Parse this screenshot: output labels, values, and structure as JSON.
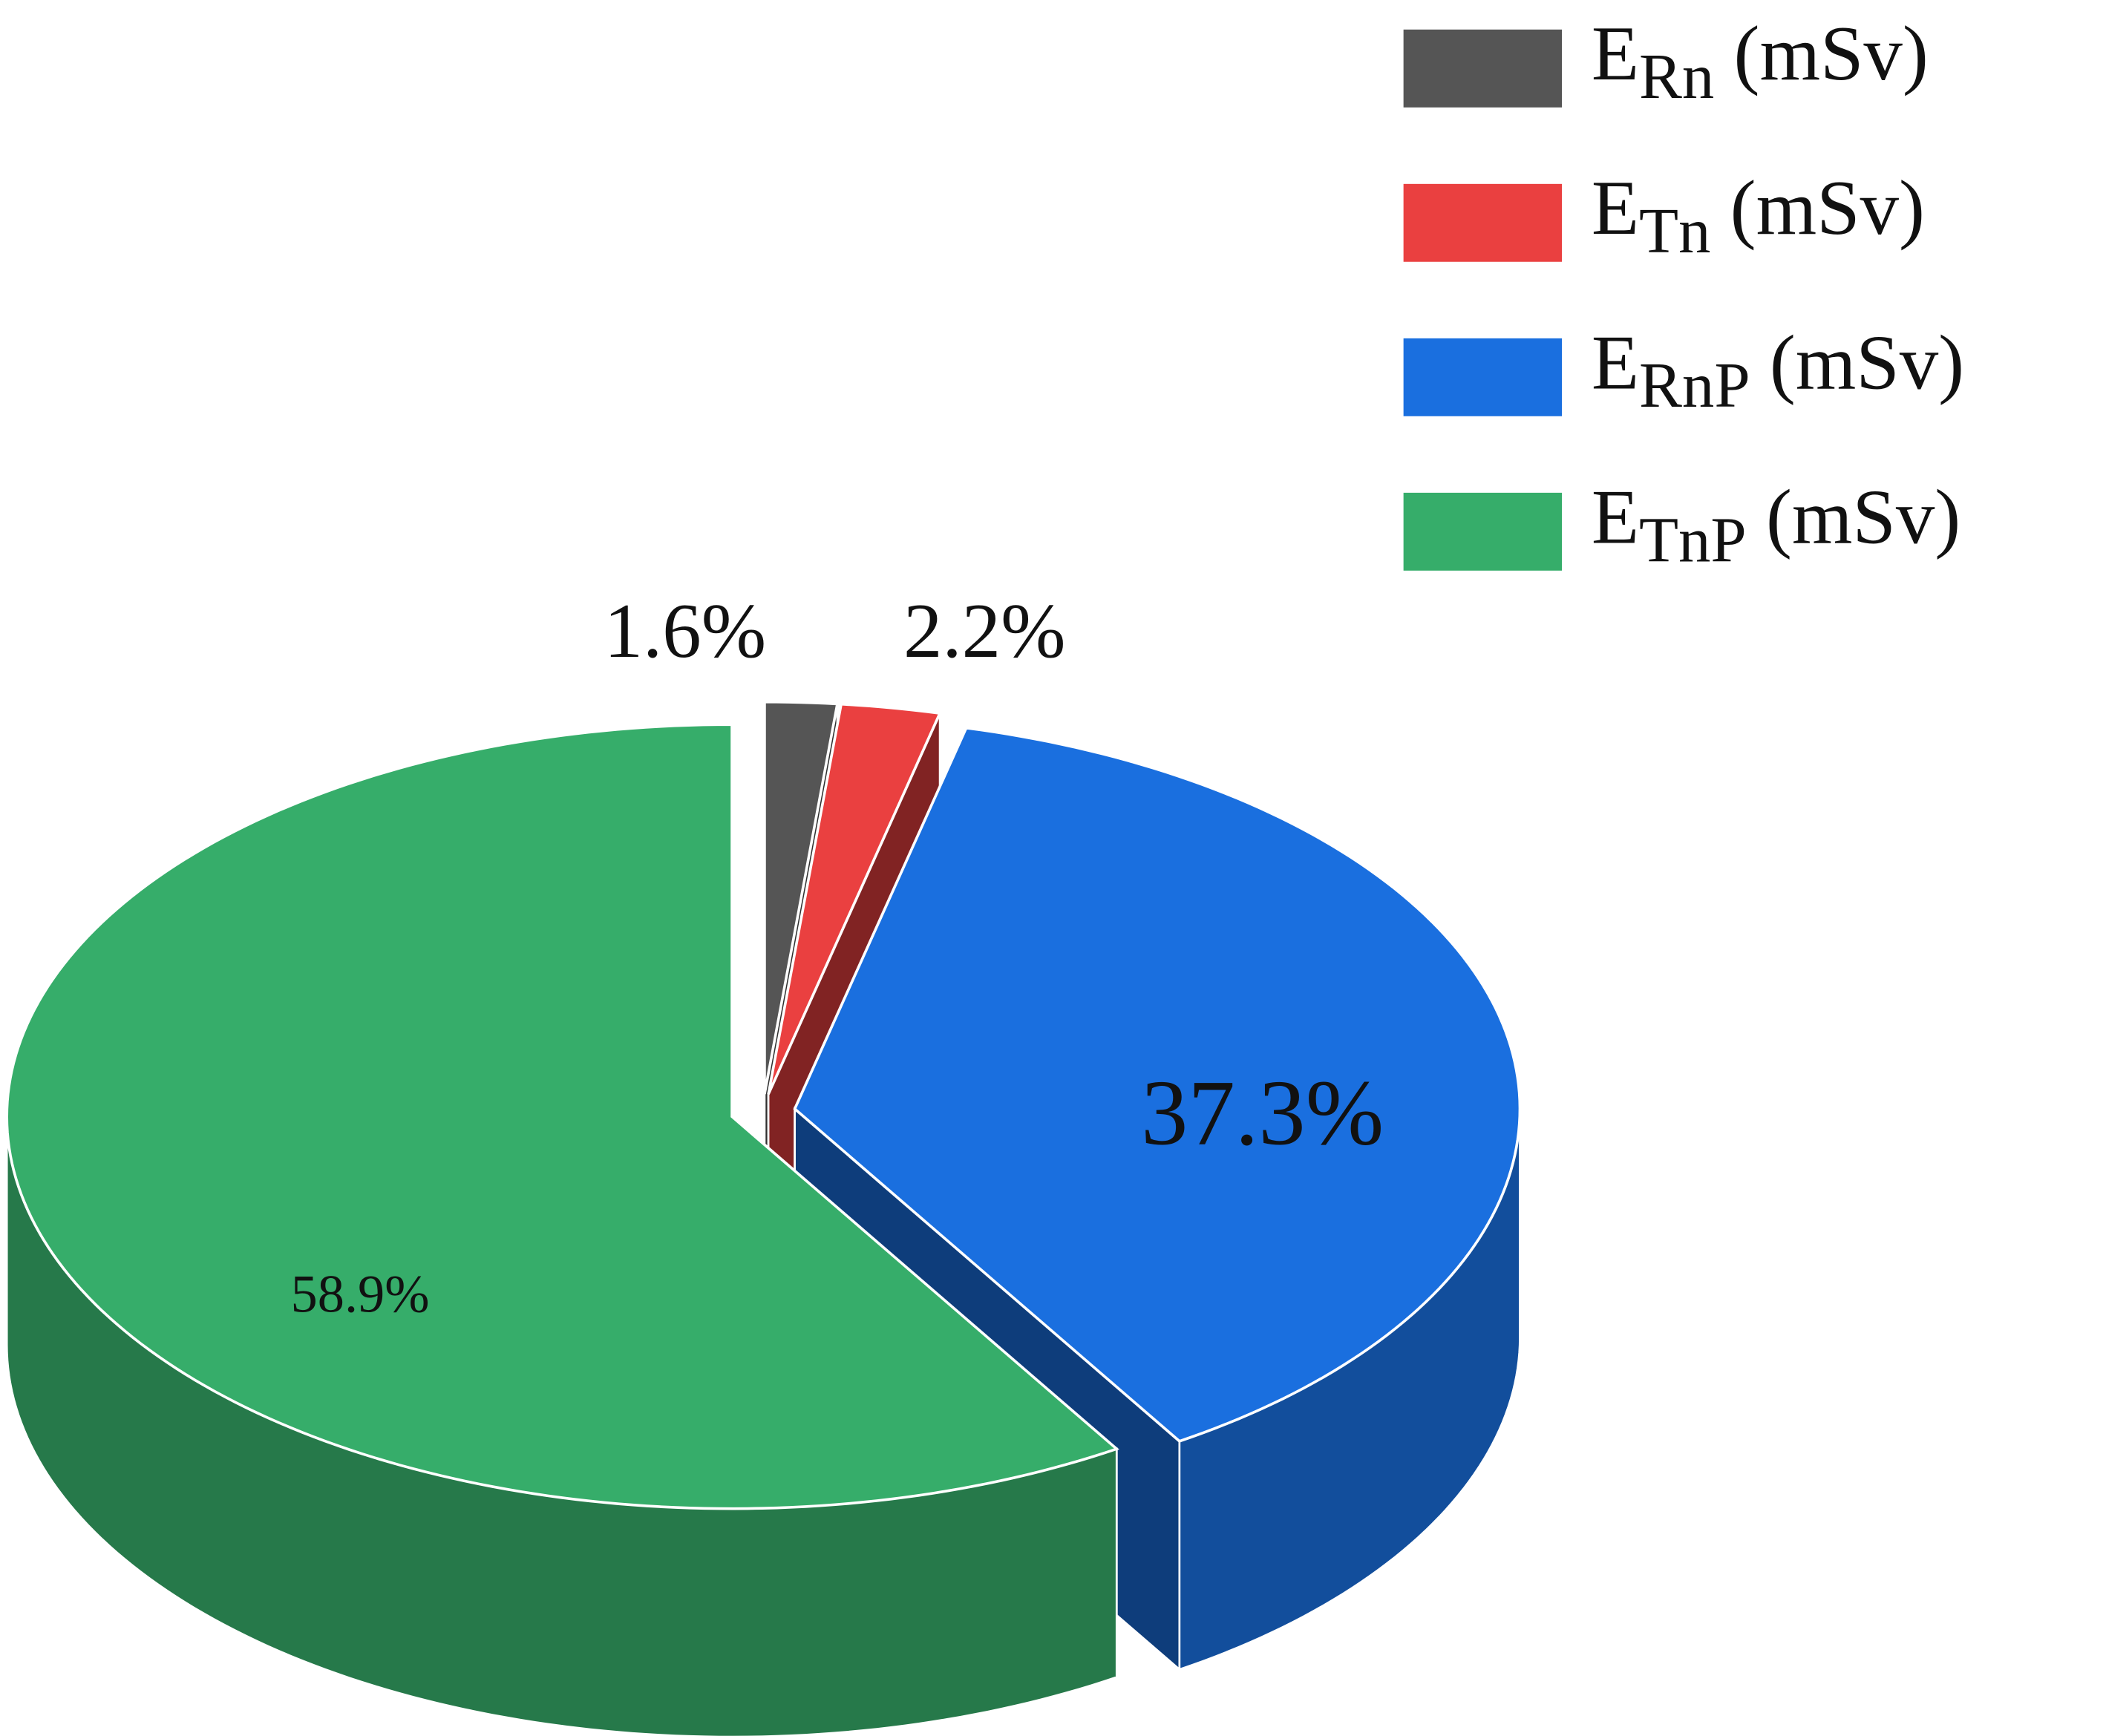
{
  "chart_data": {
    "type": "pie",
    "categories": [
      "ERn (mSv)",
      "ETn (mSv)",
      "ERnP (mSv)",
      "ETnP (mSv)"
    ],
    "values": [
      1.6,
      2.2,
      37.3,
      58.9
    ],
    "value_labels": [
      "1.6%",
      "2.2%",
      "37.3%",
      "58.9%"
    ],
    "colors": [
      "#555555",
      "#ea4040",
      "#1a6fdf",
      "#36ad6a"
    ],
    "legend": "top-right"
  }
}
